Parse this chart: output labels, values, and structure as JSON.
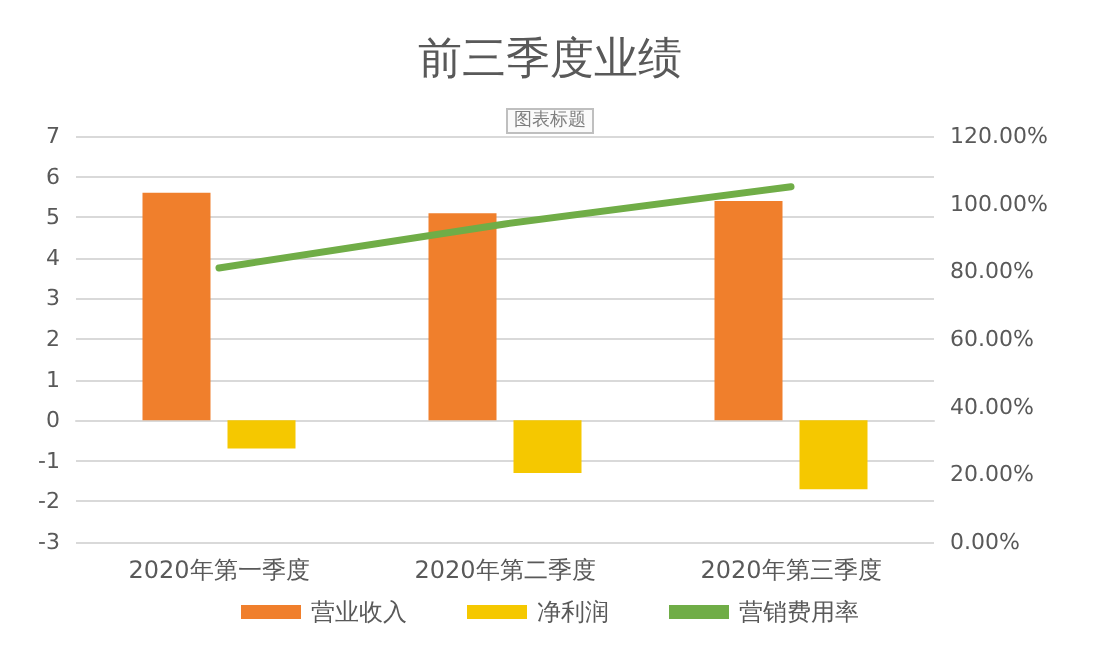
{
  "chart_data": {
    "type": "bar",
    "title": "前三季度业绩",
    "annotations": [
      "图表标题"
    ],
    "categories": [
      "2020年第一季度",
      "2020年第二季度",
      "2020年第三季度"
    ],
    "series": [
      {
        "name": "营业收入",
        "color": "#f07f2c",
        "values": [
          5.6,
          5.1,
          5.4
        ]
      },
      {
        "name": "净利润",
        "color": "#f5c800",
        "values": [
          -0.7,
          -1.3,
          -1.7
        ]
      },
      {
        "name": "营销费用率",
        "type": "line",
        "axis": "y2",
        "color": "#70ad47",
        "values": [
          81,
          94,
          105
        ]
      }
    ],
    "ylim": [
      -3,
      7
    ],
    "yticks": [
      -3,
      -2,
      -1,
      0,
      1,
      2,
      3,
      4,
      5,
      6,
      7
    ],
    "y2lim": [
      0,
      120
    ],
    "y2ticks": [
      {
        "value": 0,
        "label": "0.00%"
      },
      {
        "value": 20,
        "label": "20.00%"
      },
      {
        "value": 40,
        "label": "40.00%"
      },
      {
        "value": 60,
        "label": "60.00%"
      },
      {
        "value": 80,
        "label": "80.00%"
      },
      {
        "value": 100,
        "label": "100.00%"
      },
      {
        "value": 120,
        "label": "120.00%"
      }
    ],
    "grid": "y",
    "legend": "bottom",
    "marker": "none",
    "line_style": "solid"
  }
}
